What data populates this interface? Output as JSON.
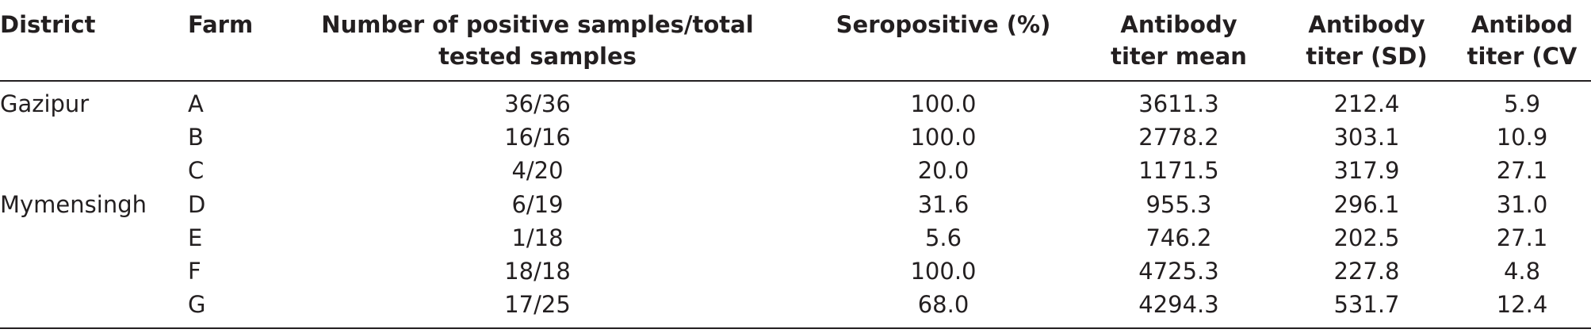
{
  "table": {
    "header": [
      [
        "District"
      ],
      [
        "Farm"
      ],
      [
        "Number of positive samples/total",
        "tested samples"
      ],
      [
        "Seropositive (%)"
      ],
      [
        "Antibody",
        "titer mean"
      ],
      [
        "Antibody",
        "titer (SD)"
      ],
      [
        "Antibod",
        "titer (CV"
      ]
    ],
    "groups": [
      {
        "district": "Gazipur",
        "rows": [
          [
            "A",
            "36/36",
            "100.0",
            "3611.3",
            "212.4",
            "5.9"
          ],
          [
            "B",
            "16/16",
            "100.0",
            "2778.2",
            "303.1",
            "10.9"
          ],
          [
            "C",
            "4/20",
            "20.0",
            "1171.5",
            "317.9",
            "27.1"
          ]
        ]
      },
      {
        "district": "Mymensingh",
        "rows": [
          [
            "D",
            "6/19",
            "31.6",
            "955.3",
            "296.1",
            "31.0"
          ],
          [
            "E",
            "1/18",
            "5.6",
            "746.2",
            "202.5",
            "27.1"
          ],
          [
            "F",
            "18/18",
            "100.0",
            "4725.3",
            "227.8",
            "4.8"
          ],
          [
            "G",
            "17/25",
            "68.0",
            "4294.3",
            "531.7",
            "12.4"
          ]
        ]
      }
    ]
  }
}
